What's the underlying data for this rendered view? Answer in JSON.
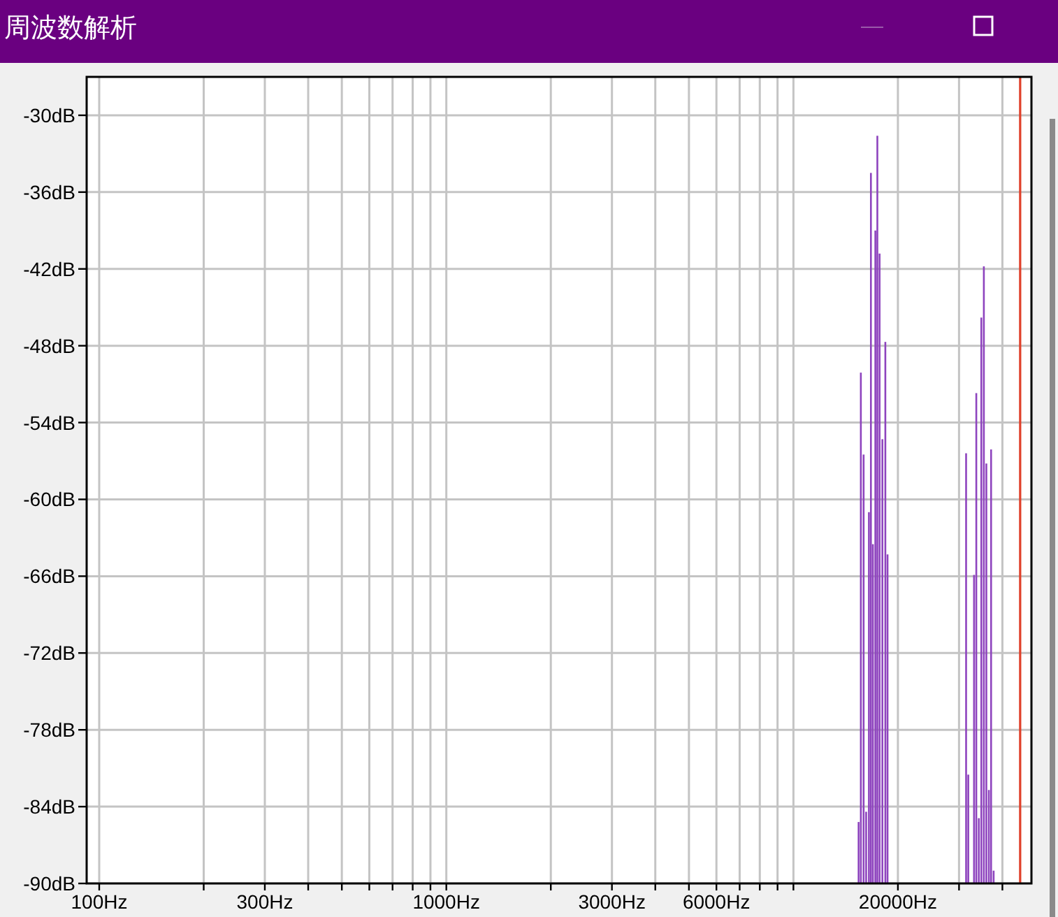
{
  "chart_data": {
    "type": "bar",
    "title": "周波数解析",
    "log": "x",
    "grid": true,
    "color": "#8e44be",
    "x": [
      15410,
      15640,
      15930,
      16200,
      16500,
      16720,
      16940,
      17220,
      17450,
      17710,
      18040,
      18400,
      18670,
      31440,
      31900,
      33140,
      33640,
      34210,
      34780,
      35370,
      35960,
      36570,
      37110,
      37740
    ],
    "base": [
      -90,
      -90,
      -90,
      -90,
      -90,
      -90,
      -90,
      -90,
      -90,
      -90,
      -90,
      -90,
      -90,
      -90,
      -90,
      -90,
      -90,
      -90,
      -90,
      -90,
      -90,
      -90,
      -90,
      -90
    ],
    "values": [
      4.8,
      39.9,
      33.5,
      5.6,
      29.0,
      55.5,
      26.5,
      51.0,
      58.4,
      49.2,
      34.7,
      42.3,
      25.7,
      33.6,
      8.5,
      24.1,
      38.3,
      5.1,
      44.2,
      48.2,
      32.8,
      7.3,
      33.9,
      1.0
    ],
    "xlim": [
      92,
      48500
    ],
    "ylim": [
      -90,
      -27
    ],
    "xticks": [
      {
        "value": 100,
        "label": "100Hz"
      },
      {
        "value": 200,
        "label": null
      },
      {
        "value": 300,
        "label": "300Hz"
      },
      {
        "value": 400,
        "label": null
      },
      {
        "value": 500,
        "label": null
      },
      {
        "value": 600,
        "label": null
      },
      {
        "value": 700,
        "label": null
      },
      {
        "value": 800,
        "label": null
      },
      {
        "value": 900,
        "label": null
      },
      {
        "value": 1000,
        "label": "1000Hz"
      },
      {
        "value": 2000,
        "label": null
      },
      {
        "value": 3000,
        "label": "3000Hz"
      },
      {
        "value": 4000,
        "label": null
      },
      {
        "value": 5000,
        "label": null
      },
      {
        "value": 6000,
        "label": "6000Hz"
      },
      {
        "value": 7000,
        "label": null
      },
      {
        "value": 8000,
        "label": null
      },
      {
        "value": 9000,
        "label": null
      },
      {
        "value": 10000,
        "label": null
      },
      {
        "value": 20000,
        "label": "20000Hz"
      },
      {
        "value": 30000,
        "label": null
      },
      {
        "value": 40000,
        "label": null
      }
    ],
    "yticks": [
      {
        "value": -30,
        "label": "-30dB"
      },
      {
        "value": -36,
        "label": "-36dB"
      },
      {
        "value": -42,
        "label": "-42dB"
      },
      {
        "value": -48,
        "label": "-48dB"
      },
      {
        "value": -54,
        "label": "-54dB"
      },
      {
        "value": -60,
        "label": "-60dB"
      },
      {
        "value": -66,
        "label": "-66dB"
      },
      {
        "value": -72,
        "label": "-72dB"
      },
      {
        "value": -78,
        "label": "-78dB"
      },
      {
        "value": -84,
        "label": "-84dB"
      },
      {
        "value": -90,
        "label": "-90dB"
      }
    ],
    "ref_lines": [
      {
        "axis": "x",
        "value": 45000,
        "color": "#e0402a"
      }
    ]
  }
}
